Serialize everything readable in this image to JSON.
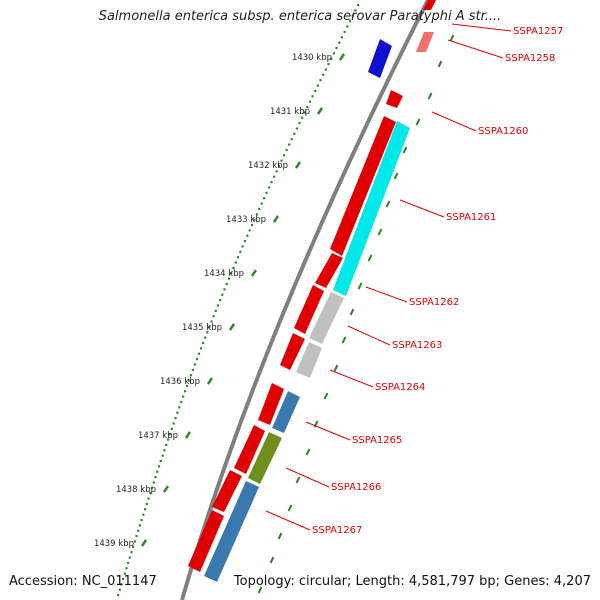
{
  "title": "Salmonella enterica subsp. enterica serovar Paratyphi A str....",
  "accession": "Accession: NC_011147",
  "topology": "Topology: circular; Length: 4,581,797 bp; Genes: 4,207",
  "ruler_ticks": [
    "1430 kbp",
    "1431 kbp",
    "1432 kbp",
    "1433 kbp",
    "1434 kbp",
    "1435 kbp",
    "1436 kbp",
    "1437 kbp",
    "1438 kbp",
    "1439 kbp"
  ],
  "gene_labels": [
    "SSPA1257",
    "SSPA1258",
    "SSPA1260",
    "SSPA1261",
    "SSPA1262",
    "SSPA1263",
    "SSPA1264",
    "SSPA1265",
    "SSPA1266",
    "SSPA1267"
  ],
  "colors": {
    "backbone": "#7f7f7f",
    "ruler": "#2a8a2a",
    "label": "#e00000",
    "forward_gene": "#e00000",
    "reverse_gene": "#1010d0",
    "cyan": "#00e8e8",
    "grey": "#c0c0c0",
    "steelblue": "#3a78b0",
    "olive": "#6e8f1e",
    "pink": "#f07070"
  }
}
